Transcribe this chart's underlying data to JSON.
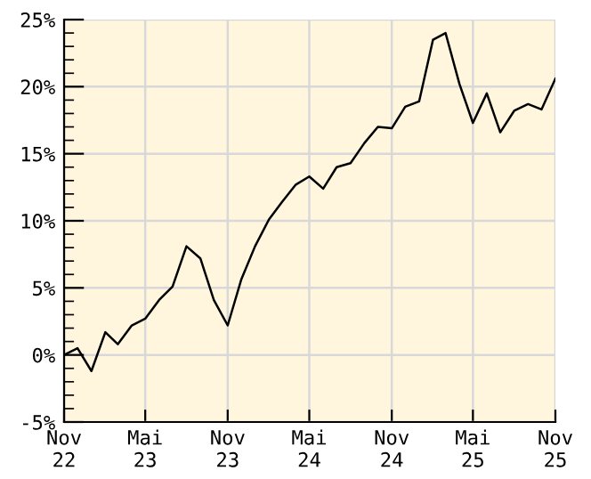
{
  "chart_data": {
    "type": "line",
    "x": [
      "2022-11",
      "2022-12",
      "2023-01",
      "2023-02",
      "2023-03",
      "2023-04",
      "2023-05",
      "2023-06",
      "2023-07",
      "2023-08",
      "2023-09",
      "2023-10",
      "2023-11",
      "2023-12",
      "2024-01",
      "2024-02",
      "2024-03",
      "2024-04",
      "2024-05",
      "2024-06",
      "2024-07",
      "2024-08",
      "2024-09",
      "2024-10",
      "2024-11",
      "2024-12",
      "2025-01",
      "2025-02",
      "2025-03",
      "2025-04",
      "2025-05",
      "2025-06",
      "2025-07",
      "2025-08",
      "2025-09",
      "2025-10",
      "2025-11"
    ],
    "series": [
      {
        "color": "#000000",
        "values": [
          0,
          0.5,
          -1.2,
          1.7,
          0.8,
          2.2,
          2.7,
          4.1,
          5.1,
          8.1,
          7.2,
          4.1,
          2.2,
          5.6,
          8.1,
          10.1,
          11.4,
          12.7,
          13.3,
          12.4,
          14.0,
          14.3,
          15.8,
          17.0,
          16.9,
          18.5,
          18.9,
          23.5,
          24.0,
          20.2,
          17.3,
          19.5,
          16.6,
          18.2,
          18.7,
          18.3,
          20.6
        ]
      }
    ],
    "xlim": [
      "2022-11",
      "2025-11"
    ],
    "xticks": [
      {
        "value": "2022-11",
        "label": "Nov\n22"
      },
      {
        "value": "2023-05",
        "label": "Mai\n23"
      },
      {
        "value": "2023-11",
        "label": "Nov\n23"
      },
      {
        "value": "2024-05",
        "label": "Mai\n24"
      },
      {
        "value": "2024-11",
        "label": "Nov\n24"
      },
      {
        "value": "2025-05",
        "label": "Mai\n25"
      },
      {
        "value": "2025-11",
        "label": "Nov\n25"
      }
    ],
    "ylim": [
      -5,
      25
    ],
    "yticks": [
      {
        "value": -5,
        "label": "-5%"
      },
      {
        "value": 0,
        "label": "0%"
      },
      {
        "value": 5,
        "label": "5%"
      },
      {
        "value": 10,
        "label": "10%"
      },
      {
        "value": 15,
        "label": "15%"
      },
      {
        "value": 20,
        "label": "20%"
      },
      {
        "value": 25,
        "label": "25%"
      }
    ],
    "grid": true,
    "marker": "none",
    "line_style": "solid"
  }
}
